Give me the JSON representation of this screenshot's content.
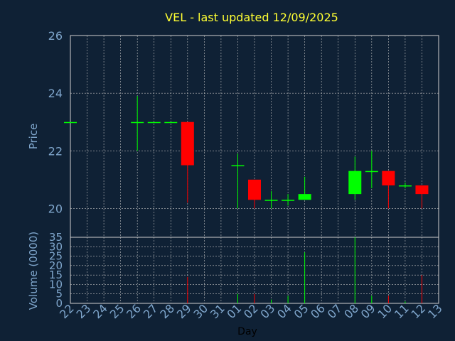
{
  "chart_data": {
    "type": "candlestick",
    "title": "VEL - last updated 12/09/2025",
    "xlabel": "Day",
    "ylabel": "Price",
    "volume_label": "Volume (0000)",
    "x_ticks": [
      "22",
      "23",
      "24",
      "25",
      "26",
      "27",
      "28",
      "29",
      "30",
      "31",
      "01",
      "02",
      "03",
      "04",
      "05",
      "06",
      "07",
      "08",
      "09",
      "10",
      "11",
      "12",
      "13"
    ],
    "price_ylim": [
      19,
      26
    ],
    "price_ticks": [
      20,
      22,
      24,
      26
    ],
    "volume_ylim": [
      0,
      35
    ],
    "volume_ticks": [
      0,
      5,
      10,
      15,
      20,
      25,
      30,
      35
    ],
    "grid": true,
    "colors": {
      "background": "#0f2135",
      "up": "#00ff00",
      "down": "#ff0000",
      "grid": "#c0c0c0",
      "title": "#ffff33",
      "axis_text": "#7fa6cc"
    },
    "candles": [
      {
        "day": "22",
        "open": 23.0,
        "high": 23.0,
        "low": 23.0,
        "close": 23.0,
        "volume": 0
      },
      {
        "day": "26",
        "open": 23.0,
        "high": 23.9,
        "low": 22.0,
        "close": 23.0,
        "volume": 0
      },
      {
        "day": "27",
        "open": 23.0,
        "high": 23.0,
        "low": 23.0,
        "close": 23.0,
        "volume": 0
      },
      {
        "day": "28",
        "open": 23.0,
        "high": 23.0,
        "low": 23.0,
        "close": 23.0,
        "volume": 0
      },
      {
        "day": "29",
        "open": 23.0,
        "high": 23.0,
        "low": 20.2,
        "close": 21.5,
        "volume": 14
      },
      {
        "day": "01",
        "open": 21.5,
        "high": 21.9,
        "low": 20.0,
        "close": 21.5,
        "volume": 5
      },
      {
        "day": "02",
        "open": 21.0,
        "high": 21.0,
        "low": 20.0,
        "close": 20.3,
        "volume": 5
      },
      {
        "day": "03",
        "open": 20.3,
        "high": 20.6,
        "low": 20.0,
        "close": 20.3,
        "volume": 2
      },
      {
        "day": "04",
        "open": 20.3,
        "high": 20.5,
        "low": 20.1,
        "close": 20.3,
        "volume": 4
      },
      {
        "day": "05",
        "open": 20.3,
        "high": 21.1,
        "low": 20.3,
        "close": 20.5,
        "volume": 27
      },
      {
        "day": "08",
        "open": 20.5,
        "high": 21.8,
        "low": 20.3,
        "close": 21.3,
        "volume": 35
      },
      {
        "day": "09",
        "open": 21.3,
        "high": 22.0,
        "low": 20.7,
        "close": 21.3,
        "volume": 4
      },
      {
        "day": "10",
        "open": 21.3,
        "high": 21.3,
        "low": 20.0,
        "close": 20.8,
        "volume": 4
      },
      {
        "day": "11",
        "open": 20.8,
        "high": 20.9,
        "low": 20.7,
        "close": 20.8,
        "volume": 1
      },
      {
        "day": "12",
        "open": 20.8,
        "high": 20.8,
        "low": 20.0,
        "close": 20.5,
        "volume": 15
      }
    ]
  }
}
